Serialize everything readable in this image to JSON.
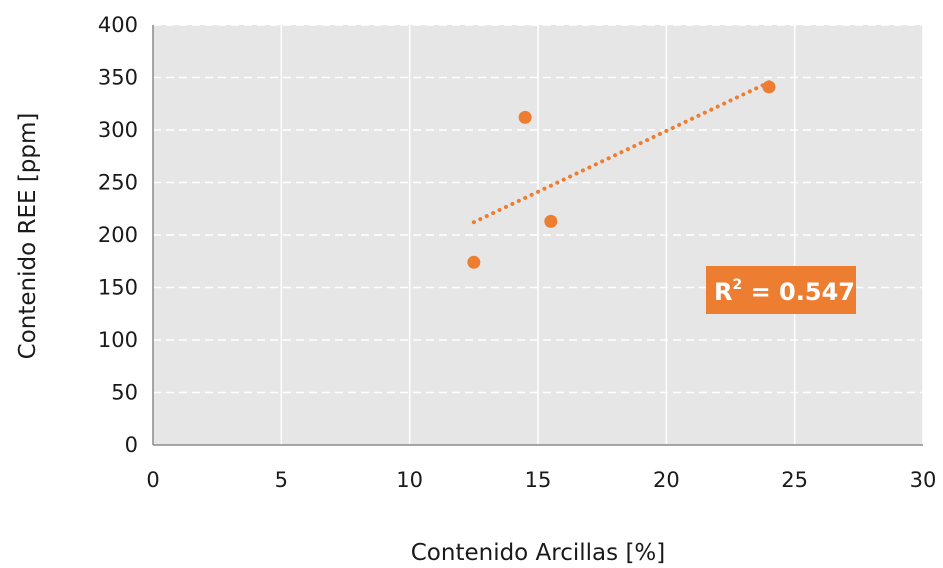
{
  "chart_data": {
    "type": "scatter",
    "xlabel": "Contenido Arcillas [%]",
    "ylabel": "Contenido REE [ppm]",
    "xlim": [
      0,
      30
    ],
    "ylim": [
      0,
      400
    ],
    "x_ticks": [
      "0",
      "5",
      "10",
      "15",
      "20",
      "25",
      "30"
    ],
    "y_ticks": [
      "0",
      "50",
      "100",
      "150",
      "200",
      "250",
      "300",
      "350",
      "400"
    ],
    "points": [
      {
        "x": 12.5,
        "y": 174
      },
      {
        "x": 14.5,
        "y": 312
      },
      {
        "x": 15.5,
        "y": 213
      },
      {
        "x": 24,
        "y": 341
      }
    ],
    "trendline": {
      "type": "linear",
      "style": "dotted",
      "x_range": [
        12.5,
        24
      ]
    },
    "r_squared_label": {
      "prefix": "R",
      "superscript": "2",
      "value_text": " = 0.547"
    },
    "grid": true,
    "colors": {
      "point": "#ed7d31",
      "trendline": "#ed7d31",
      "plot_background": "#e6e6e6",
      "gridline": "#ffffff",
      "label_background": "#ed7d31"
    }
  }
}
